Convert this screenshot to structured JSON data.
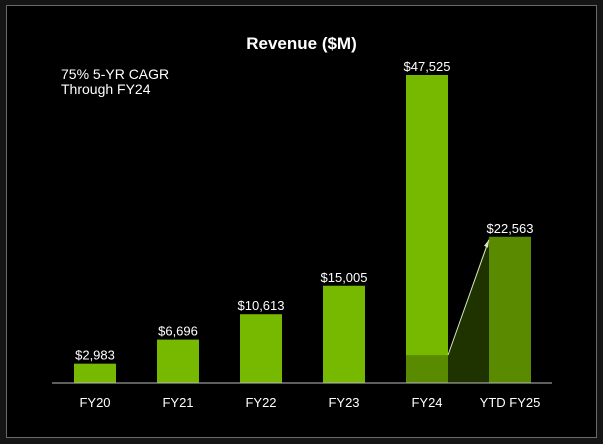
{
  "chart_data": {
    "type": "bar",
    "title": "Revenue ($M)",
    "annotation": [
      "75% 5-YR CAGR",
      "Through FY24"
    ],
    "categories": [
      "FY20",
      "FY21",
      "FY22",
      "FY23",
      "FY24",
      "YTD FY25"
    ],
    "values": [
      2983,
      6696,
      10613,
      15005,
      47525,
      22563
    ],
    "data_labels": [
      "$2,983",
      "$6,696",
      "$10,613",
      "$15,005",
      "$47,525",
      "$22,563"
    ],
    "fy24_highlighted_portion_estimate": 4300,
    "xlabel": "",
    "ylabel": "",
    "ylim": [
      0,
      48000
    ],
    "grid": false,
    "legend": "none",
    "colors": {
      "bar": "#76b900",
      "ytd_bar": "#5a8a00",
      "fy24_lower": "#5a8a00",
      "connector_fill": "#1e3300",
      "arrow": "#d8e6c0",
      "axis": "#bbbbbb",
      "text": "#ffffff"
    }
  }
}
